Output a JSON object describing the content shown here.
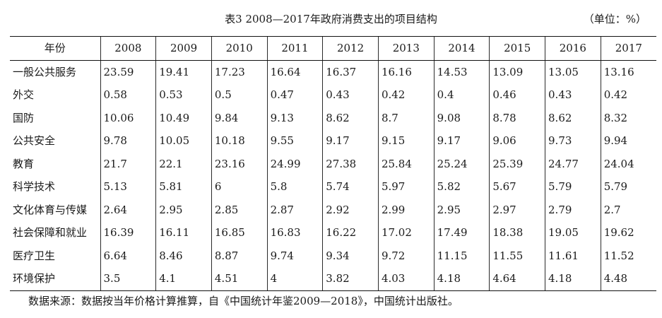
{
  "title": "表3   2008—2017年政府消费支出的项目结构",
  "unit": "（单位：%）",
  "table": {
    "header": [
      "年份",
      "2008",
      "2009",
      "2010",
      "2011",
      "2012",
      "2013",
      "2014",
      "2015",
      "2016",
      "2017"
    ],
    "rows": [
      [
        "一般公共服务",
        "23.59",
        "19.41",
        "17.23",
        "16.64",
        "16.37",
        "16.16",
        "14.53",
        "13.09",
        "13.05",
        "13.16"
      ],
      [
        "外交",
        "0.58",
        "0.53",
        "0.5",
        "0.47",
        "0.43",
        "0.42",
        "0.4",
        "0.46",
        "0.43",
        "0.42"
      ],
      [
        "国防",
        "10.06",
        "10.49",
        "9.84",
        "9.13",
        "8.62",
        "8.7",
        "9.08",
        "8.78",
        "8.62",
        "8.32"
      ],
      [
        "公共安全",
        "9.78",
        "10.05",
        "10.18",
        "9.55",
        "9.17",
        "9.15",
        "9.17",
        "9.06",
        "9.73",
        "9.94"
      ],
      [
        "教育",
        "21.7",
        "22.1",
        "23.16",
        "24.99",
        "27.38",
        "25.84",
        "25.24",
        "25.39",
        "24.77",
        "24.04"
      ],
      [
        "科学技术",
        "5.13",
        "5.81",
        "6",
        "5.8",
        "5.74",
        "5.97",
        "5.82",
        "5.67",
        "5.79",
        "5.79"
      ],
      [
        "文化体育与传媒",
        "2.64",
        "2.95",
        "2.85",
        "2.87",
        "2.92",
        "2.99",
        "2.95",
        "2.97",
        "2.79",
        "2.7"
      ],
      [
        "社会保障和就业",
        "16.39",
        "16.11",
        "16.85",
        "16.83",
        "16.22",
        "17.02",
        "17.49",
        "18.38",
        "19.05",
        "19.62"
      ],
      [
        "医疗卫生",
        "6.64",
        "8.46",
        "8.87",
        "9.74",
        "9.34",
        "9.72",
        "11.15",
        "11.55",
        "11.61",
        "11.52"
      ],
      [
        "环境保护",
        "3.5",
        "4.1",
        "4.51",
        "4",
        "3.82",
        "4.03",
        "4.18",
        "4.64",
        "4.18",
        "4.48"
      ]
    ]
  },
  "source": "数据来源：数据按当年价格计算推算，自《中国统计年鉴2009—2018》，中国统计出版社。"
}
